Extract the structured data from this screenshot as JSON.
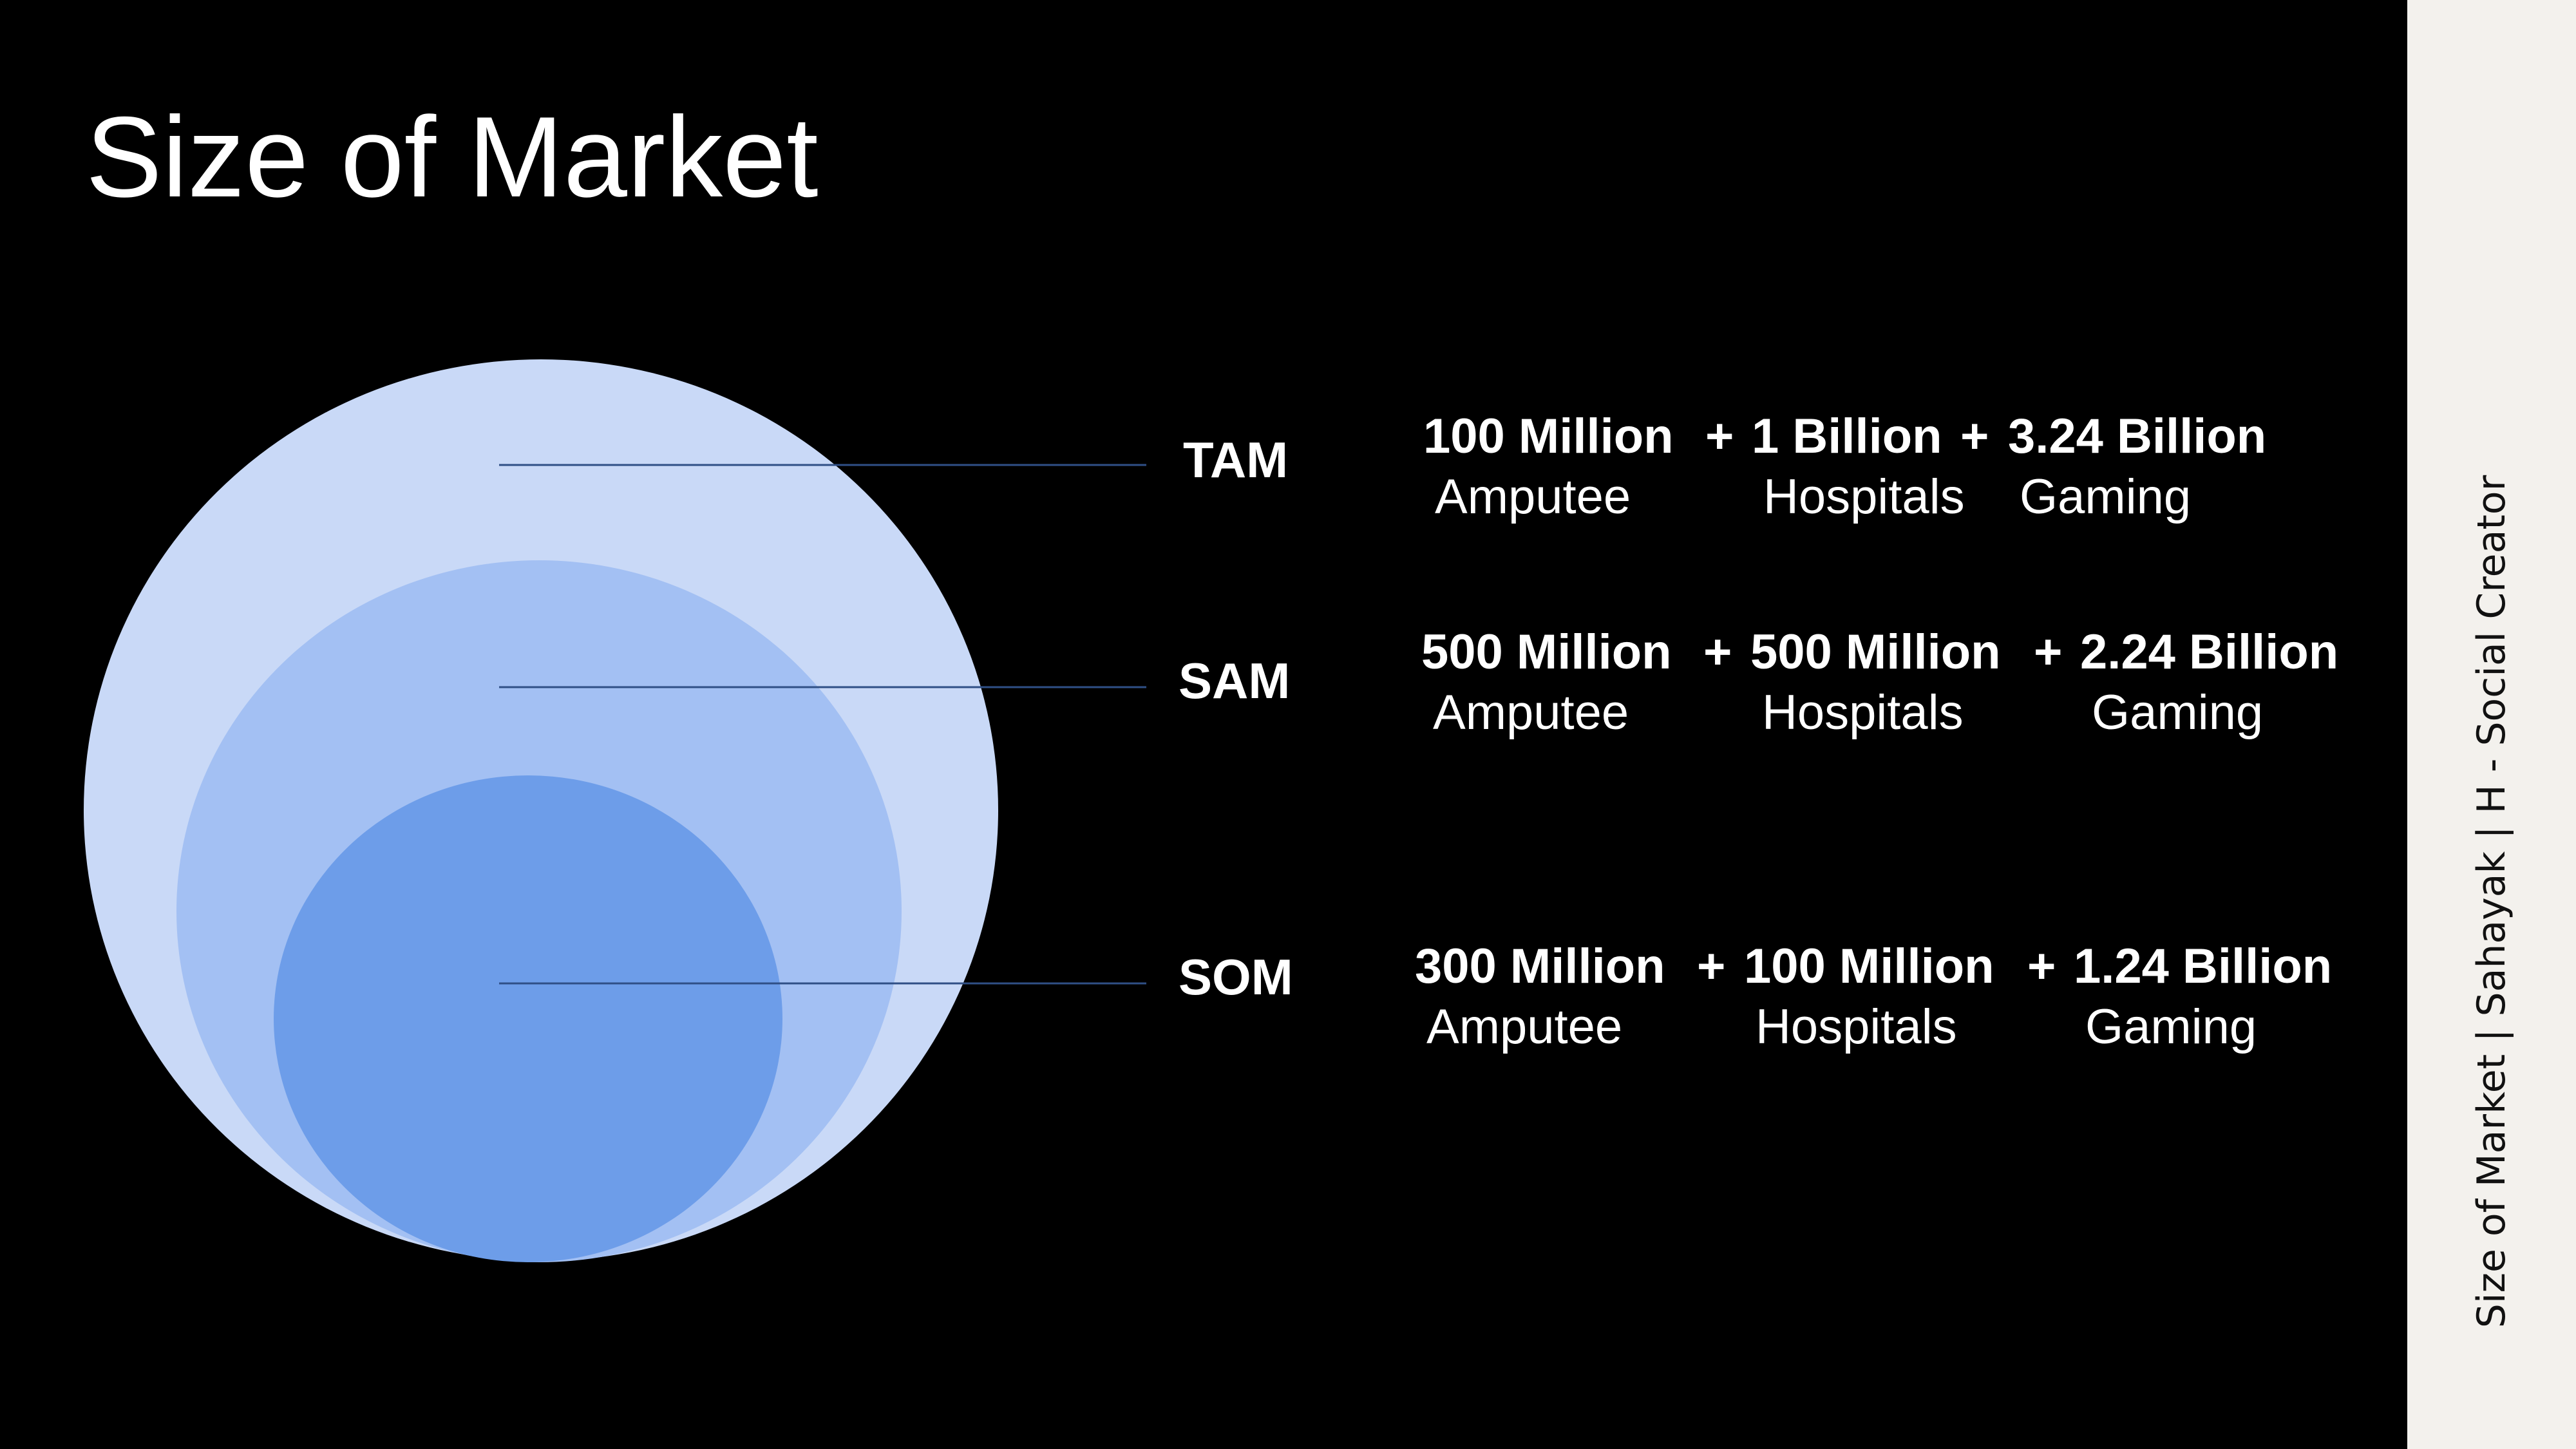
{
  "slide": {
    "title": "Size of Market",
    "background_color": "#000000",
    "text_color": "#ffffff"
  },
  "diagram": {
    "circle_colors": {
      "tam": "#c9d9f7",
      "sam": "#a3c0f3",
      "som": "#6d9de9"
    },
    "connector_color": "#2f4f86",
    "rows": [
      {
        "key": "tam",
        "label": "TAM",
        "segments": [
          {
            "value": "100 Million",
            "label": "Amputee"
          },
          {
            "value": "1 Billion",
            "label": "Hospitals"
          },
          {
            "value": "3.24 Billion",
            "label": "Gaming"
          }
        ],
        "separator": "+"
      },
      {
        "key": "sam",
        "label": "SAM",
        "segments": [
          {
            "value": "500 Million",
            "label": "Amputee"
          },
          {
            "value": "500 Million",
            "label": "Hospitals"
          },
          {
            "value": "2.24 Billion",
            "label": "Gaming"
          }
        ],
        "separator": "+"
      },
      {
        "key": "som",
        "label": "SOM",
        "segments": [
          {
            "value": "300 Million",
            "label": "Amputee"
          },
          {
            "value": "100 Million",
            "label": "Hospitals"
          },
          {
            "value": "1.24 Billion",
            "label": "Gaming"
          }
        ],
        "separator": "+"
      }
    ]
  },
  "sidebar": {
    "caption": "Size of Market | Sahayak | H - Social Creator",
    "background_color": "#f3f1ed"
  }
}
